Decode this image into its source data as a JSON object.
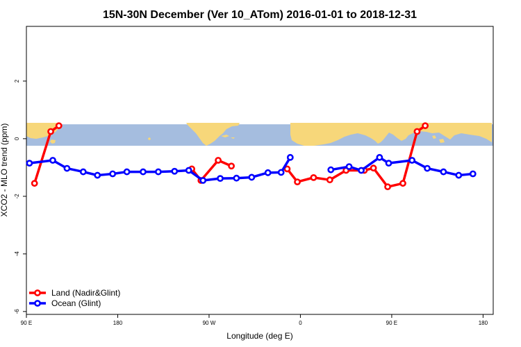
{
  "chart_data": {
    "type": "line",
    "title": "15N-30N December (Ver 10_ATom)   2016-01-01 to 2018-12-31",
    "xlabel": "Longitude (deg E)",
    "ylabel": "XCO2 - MLO trend (ppm)",
    "xlim": [
      90,
      550
    ],
    "ylim": [
      -6.1,
      3.9
    ],
    "xticks": [
      {
        "value": 90,
        "label": "90 E"
      },
      {
        "value": 180,
        "label": "180"
      },
      {
        "value": 270,
        "label": "90 W"
      },
      {
        "value": 360,
        "label": "0"
      },
      {
        "value": 450,
        "label": "90 E"
      },
      {
        "value": 540,
        "label": "180"
      }
    ],
    "yticks": [
      {
        "value": 2,
        "label": "2"
      },
      {
        "value": 0,
        "label": "0"
      },
      {
        "value": -2,
        "label": "-2"
      },
      {
        "value": -4,
        "label": "-4"
      },
      {
        "value": -6,
        "label": "-6"
      }
    ],
    "map_band": {
      "y_range": [
        -0.3,
        0.5
      ],
      "ocean_color": "#a5bddf",
      "land_color": "#f7d77a"
    },
    "legend": "bottom-left",
    "series": [
      {
        "name": "Land (Nadir&Glint)",
        "color": "#ff0000",
        "segments": [
          [
            [
              98,
              -1.55
            ],
            [
              114,
              0.25
            ],
            [
              122,
              0.45
            ]
          ],
          [
            [
              253,
              -1.05
            ],
            [
              262,
              -1.45
            ],
            [
              279,
              -0.75
            ],
            [
              292,
              -0.95
            ]
          ],
          [
            [
              347,
              -1.05
            ],
            [
              357,
              -1.5
            ],
            [
              373,
              -1.35
            ],
            [
              389,
              -1.43
            ],
            [
              405,
              -1.1
            ],
            [
              423,
              -1.1
            ],
            [
              432,
              -1.02
            ],
            [
              446,
              -1.67
            ],
            [
              461,
              -1.55
            ],
            [
              475,
              0.25
            ],
            [
              483,
              0.45
            ]
          ]
        ]
      },
      {
        "name": "Ocean (Glint)",
        "color": "#0000ff",
        "segments": [
          [
            [
              93,
              -0.85
            ],
            [
              116,
              -0.75
            ],
            [
              130,
              -1.03
            ],
            [
              146,
              -1.15
            ],
            [
              160,
              -1.27
            ],
            [
              175,
              -1.22
            ],
            [
              189,
              -1.15
            ],
            [
              205,
              -1.15
            ],
            [
              220,
              -1.15
            ],
            [
              236,
              -1.13
            ],
            [
              250,
              -1.1
            ],
            [
              264,
              -1.45
            ],
            [
              281,
              -1.38
            ],
            [
              297,
              -1.37
            ],
            [
              312,
              -1.34
            ],
            [
              328,
              -1.18
            ],
            [
              341,
              -1.17
            ],
            [
              350,
              -0.65
            ]
          ],
          [
            [
              390,
              -1.08
            ],
            [
              408,
              -0.97
            ],
            [
              420,
              -1.1
            ],
            [
              438,
              -0.65
            ],
            [
              447,
              -0.85
            ],
            [
              470,
              -0.75
            ],
            [
              485,
              -1.03
            ],
            [
              501,
              -1.15
            ],
            [
              516,
              -1.27
            ],
            [
              530,
              -1.22
            ]
          ]
        ]
      }
    ]
  }
}
